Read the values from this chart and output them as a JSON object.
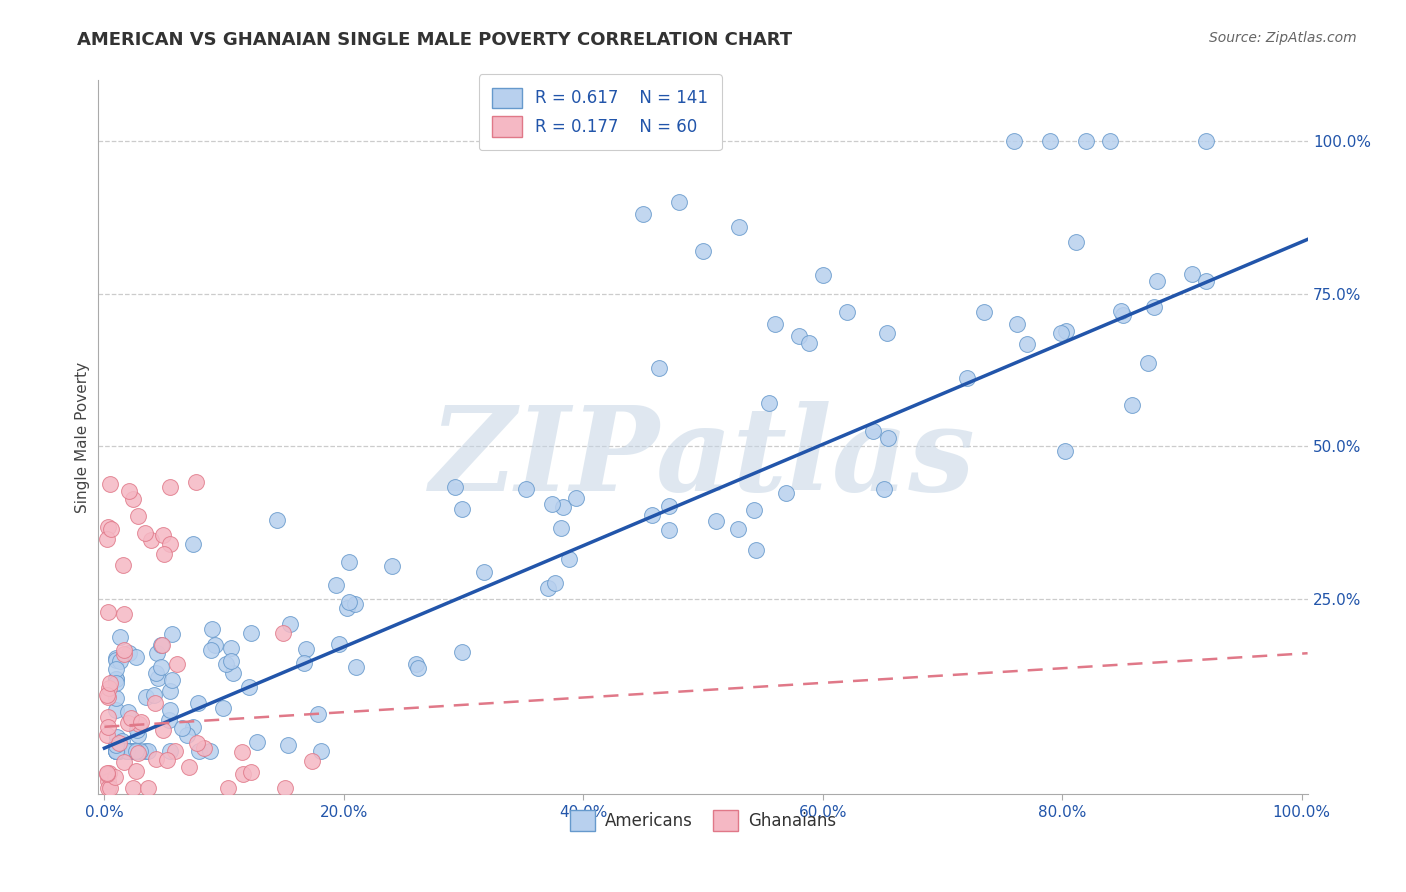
{
  "title": "AMERICAN VS GHANAIAN SINGLE MALE POVERTY CORRELATION CHART",
  "source": "Source: ZipAtlas.com",
  "ylabel": "Single Male Poverty",
  "xlim": [
    -0.005,
    1.005
  ],
  "ylim": [
    -0.07,
    1.1
  ],
  "yticks": [
    0.0,
    0.25,
    0.5,
    0.75,
    1.0
  ],
  "ytick_labels": [
    "",
    "25.0%",
    "50.0%",
    "75.0%",
    "100.0%"
  ],
  "xticks": [
    0.0,
    0.2,
    0.4,
    0.6,
    0.8,
    1.0
  ],
  "xtick_labels": [
    "0.0%",
    "20.0%",
    "40.0%",
    "60.0%",
    "80.0%",
    "100.0%"
  ],
  "grid_color": "#cccccc",
  "background_color": "#ffffff",
  "watermark": "ZIPatlas",
  "watermark_color": "#c5d5e5",
  "legend_R_american": "R = 0.617",
  "legend_N_american": "N = 141",
  "legend_R_ghanaian": "R = 0.177",
  "legend_N_ghanaian": "N = 60",
  "american_color": "#b8d0ee",
  "american_edge_color": "#6699cc",
  "ghanaian_color": "#f5b8c4",
  "ghanaian_edge_color": "#e07888",
  "regression_american_color": "#2255aa",
  "regression_ghanaian_color": "#e07888",
  "label_color": "#2255aa",
  "title_color": "#333333",
  "reg_am_slope": 0.83,
  "reg_am_intercept": 0.005,
  "reg_gh_slope": 0.12,
  "reg_gh_intercept": 0.04
}
